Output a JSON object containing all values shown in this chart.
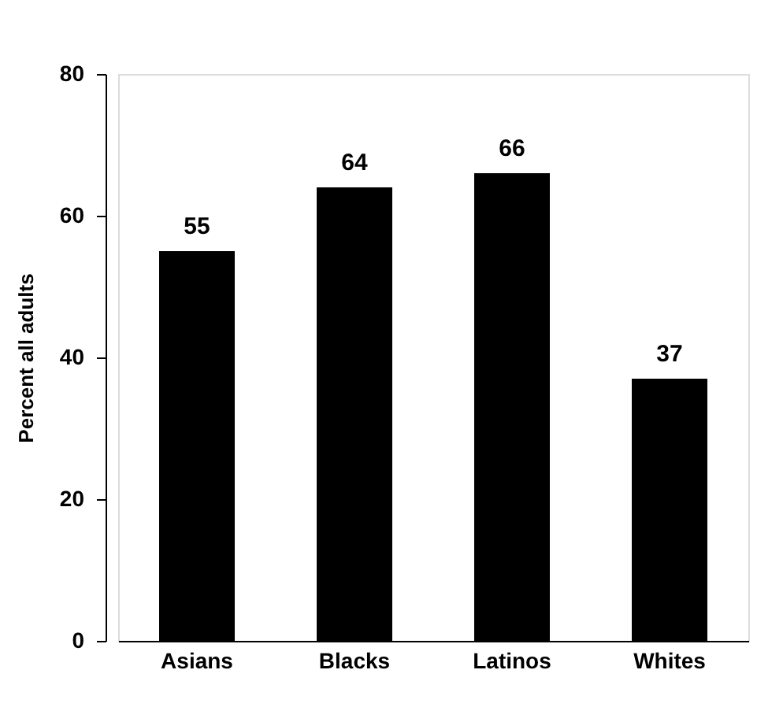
{
  "chart_data": {
    "type": "bar",
    "ylabel": "Percent all adults",
    "categories": [
      "Asians",
      "Blacks",
      "Latinos",
      "Whites"
    ],
    "values": [
      55,
      64,
      66,
      37
    ],
    "color": "#000000",
    "ylim": [
      0,
      80
    ],
    "yticks": [
      0,
      20,
      40,
      60,
      80
    ],
    "grid": false,
    "data_labels": true
  }
}
